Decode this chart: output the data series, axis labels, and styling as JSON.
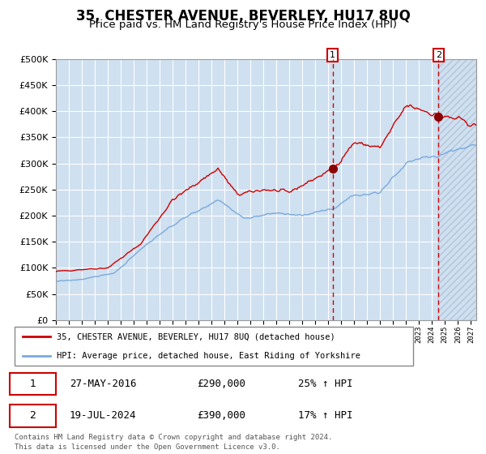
{
  "title": "35, CHESTER AVENUE, BEVERLEY, HU17 8UQ",
  "subtitle": "Price paid vs. HM Land Registry's House Price Index (HPI)",
  "title_fontsize": 12,
  "subtitle_fontsize": 9.5,
  "plot_bg_color": "#cfe0f0",
  "grid_color": "#ffffff",
  "hpi_line_color": "#7aaadd",
  "property_line_color": "#cc0000",
  "marker_color": "#880000",
  "vline_color": "#cc0000",
  "ylim": [
    0,
    500000
  ],
  "yticks": [
    0,
    50000,
    100000,
    150000,
    200000,
    250000,
    300000,
    350000,
    400000,
    450000,
    500000
  ],
  "purchase1_year": 2016,
  "purchase1_month": 5,
  "purchase1_price": 290000,
  "purchase1_pct": "25%",
  "purchase1_date_str": "27-MAY-2016",
  "purchase2_year": 2024,
  "purchase2_month": 7,
  "purchase2_price": 390000,
  "purchase2_pct": "17%",
  "purchase2_date_str": "19-JUL-2024",
  "legend_property": "35, CHESTER AVENUE, BEVERLEY, HU17 8UQ (detached house)",
  "legend_hpi": "HPI: Average price, detached house, East Riding of Yorkshire",
  "footnote_line1": "Contains HM Land Registry data © Crown copyright and database right 2024.",
  "footnote_line2": "This data is licensed under the Open Government Licence v3.0.",
  "x_start_year": 1995,
  "x_end_year": 2027
}
